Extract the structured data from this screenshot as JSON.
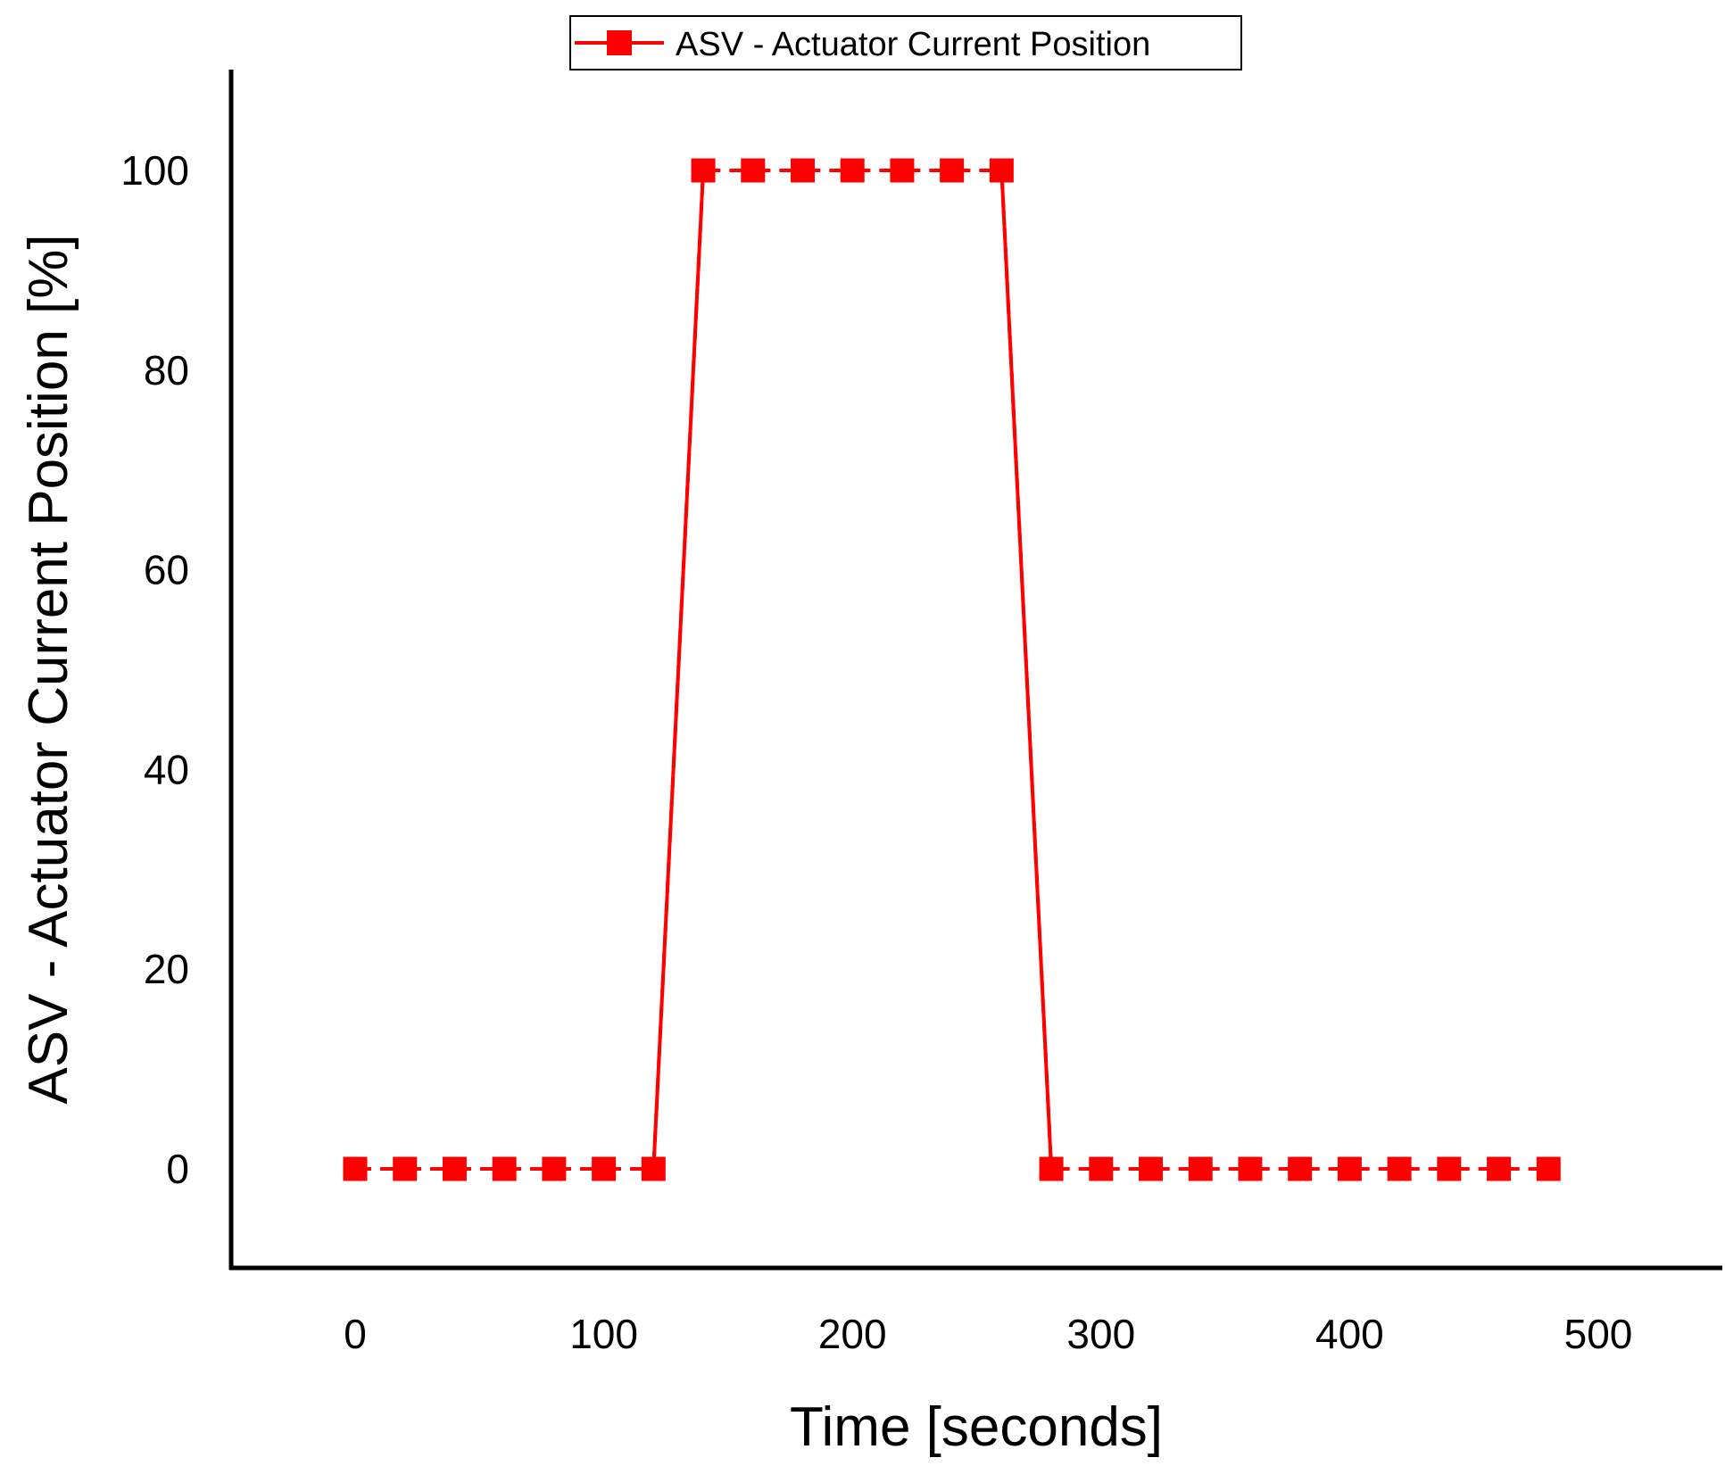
{
  "chart_data": {
    "type": "line",
    "title": "",
    "xlabel": "Time [seconds]",
    "ylabel": "ASV - Actuator Current Position [%]",
    "xlim": [
      -50,
      550
    ],
    "ylim": [
      -10,
      110
    ],
    "x_ticks": [
      0,
      100,
      200,
      300,
      400,
      500
    ],
    "y_ticks": [
      0,
      20,
      40,
      60,
      80,
      100
    ],
    "grid": false,
    "legend": {
      "placement": "top-center",
      "entries": [
        "ASV - Actuator Current Position"
      ]
    },
    "series": [
      {
        "name": "ASV - Actuator Current Position",
        "color": "#ff0000",
        "marker": "square",
        "x": [
          0,
          20,
          40,
          60,
          80,
          100,
          120,
          140,
          160,
          180,
          200,
          220,
          240,
          260,
          280,
          300,
          320,
          340,
          360,
          380,
          400,
          420,
          440,
          460,
          480
        ],
        "y": [
          0,
          0,
          0,
          0,
          0,
          0,
          0,
          100,
          100,
          100,
          100,
          100,
          100,
          100,
          0,
          0,
          0,
          0,
          0,
          0,
          0,
          0,
          0,
          0,
          0
        ]
      }
    ]
  }
}
